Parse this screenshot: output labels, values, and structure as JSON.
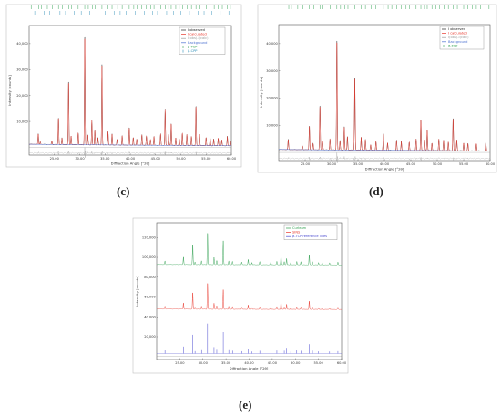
{
  "chart_data": [
    {
      "id": "c",
      "type": "line",
      "caption": "(c)",
      "xlabel": "Diffraction Angle [°2θ]",
      "ylabel": "Intensity [counts]",
      "xlim": [
        20,
        60
      ],
      "ylim": [
        -3000,
        47000
      ],
      "xticks": [
        "25.00",
        "30.00",
        "35.00",
        "40.00",
        "45.00",
        "50.00",
        "55.00",
        "60.00"
      ],
      "yticks": [
        "10,000",
        "20,000",
        "30,000",
        "40,000"
      ],
      "ytick_values": [
        10000,
        20000,
        30000,
        40000
      ],
      "legend_position": "top-right",
      "legend": [
        {
          "label": "I observed",
          "color": "#222222"
        },
        {
          "label": "I calculated",
          "color": "#e8362a"
        },
        {
          "label": "I(obs)-I(calc)",
          "color": "#9a9a9a"
        },
        {
          "label": "Background",
          "color": "#4a6fd0"
        },
        {
          "label": "β-TCP",
          "color": "#2e9e4e",
          "marker": true
        },
        {
          "label": "β-CPP",
          "color": "#2f8fb8",
          "marker": true
        }
      ],
      "background": 1200,
      "peaks": [
        [
          21.8,
          4200
        ],
        [
          22.2,
          1100
        ],
        [
          24.5,
          1500
        ],
        [
          25.8,
          10800
        ],
        [
          26.5,
          2600
        ],
        [
          27.8,
          25500
        ],
        [
          28.3,
          3400
        ],
        [
          29.7,
          4700
        ],
        [
          31.0,
          44000
        ],
        [
          31.6,
          3800
        ],
        [
          32.4,
          9500
        ],
        [
          33.0,
          5800
        ],
        [
          33.6,
          2800
        ],
        [
          34.4,
          31000
        ],
        [
          35.6,
          5200
        ],
        [
          36.4,
          4200
        ],
        [
          37.4,
          2300
        ],
        [
          38.4,
          3600
        ],
        [
          39.8,
          7000
        ],
        [
          40.6,
          3100
        ],
        [
          41.3,
          2400
        ],
        [
          42.3,
          4100
        ],
        [
          43.2,
          3600
        ],
        [
          44.0,
          2300
        ],
        [
          44.7,
          3500
        ],
        [
          46.0,
          4500
        ],
        [
          46.9,
          14000
        ],
        [
          47.6,
          4400
        ],
        [
          48.1,
          8500
        ],
        [
          49.0,
          3100
        ],
        [
          49.7,
          2600
        ],
        [
          50.3,
          4900
        ],
        [
          51.2,
          4300
        ],
        [
          52.1,
          3600
        ],
        [
          53.0,
          16000
        ],
        [
          53.7,
          4500
        ],
        [
          55.0,
          3300
        ],
        [
          55.8,
          3000
        ],
        [
          56.5,
          2600
        ],
        [
          57.4,
          3100
        ],
        [
          58.1,
          2300
        ],
        [
          59.2,
          3600
        ],
        [
          59.8,
          2100
        ]
      ],
      "reflection_rows": [
        {
          "name": "β-TCP",
          "color": "#2e9e4e",
          "positions": [
            20.4,
            21.9,
            22.4,
            23.6,
            24.6,
            25.8,
            26.6,
            27.8,
            28.4,
            29.7,
            31.0,
            31.7,
            32.5,
            33.1,
            34.4,
            35.6,
            36.4,
            37.5,
            38.4,
            39.8,
            40.7,
            41.4,
            42.3,
            43.2,
            44.1,
            44.7,
            46.0,
            46.9,
            47.6,
            48.1,
            49.0,
            49.7,
            50.4,
            51.3,
            52.1,
            53.0,
            53.8,
            55.0,
            55.8,
            56.6,
            57.4,
            58.2,
            59.2,
            59.8
          ]
        },
        {
          "name": "β-CPP",
          "color": "#2f8fb8",
          "positions": [
            21.1,
            23.0,
            24.1,
            26.1,
            27.2,
            28.9,
            30.3,
            32.0,
            33.4,
            35.0,
            36.8,
            38.0,
            39.2,
            41.0,
            42.8,
            44.4,
            45.4,
            47.2,
            48.6,
            50.0,
            51.7,
            53.4,
            54.6,
            56.1,
            57.8,
            59.5
          ]
        }
      ],
      "residual_level": -2200
    },
    {
      "id": "d",
      "type": "line",
      "caption": "(d)",
      "xlabel": "Diffraction Angle [°2θ]",
      "ylabel": "Intensity [counts]",
      "xlim": [
        20,
        60
      ],
      "ylim": [
        -3000,
        47000
      ],
      "xticks": [
        "25.00",
        "30.00",
        "35.00",
        "40.00",
        "45.00",
        "50.00",
        "55.00",
        "60.00"
      ],
      "yticks": [
        "10,000",
        "20,000",
        "30,000",
        "40,000"
      ],
      "ytick_values": [
        10000,
        20000,
        30000,
        40000
      ],
      "legend_position": "top-right",
      "legend": [
        {
          "label": "I observed",
          "color": "#222222"
        },
        {
          "label": "I calculated",
          "color": "#e8362a"
        },
        {
          "label": "I(obs)-I(calc)",
          "color": "#9a9a9a"
        },
        {
          "label": "Background",
          "color": "#4a6fd0"
        },
        {
          "label": "β-TCP",
          "color": "#2e9e4e",
          "marker": true
        }
      ],
      "background": 1100,
      "peaks": [
        [
          21.8,
          3900
        ],
        [
          24.5,
          1400
        ],
        [
          25.8,
          9200
        ],
        [
          26.5,
          2400
        ],
        [
          27.8,
          17000
        ],
        [
          28.3,
          3100
        ],
        [
          29.7,
          4200
        ],
        [
          31.0,
          42500
        ],
        [
          31.6,
          3500
        ],
        [
          32.4,
          8500
        ],
        [
          33.0,
          5200
        ],
        [
          34.4,
          26500
        ],
        [
          35.6,
          4800
        ],
        [
          36.4,
          3900
        ],
        [
          37.4,
          2100
        ],
        [
          38.4,
          3300
        ],
        [
          39.8,
          6400
        ],
        [
          40.6,
          2900
        ],
        [
          42.3,
          3800
        ],
        [
          43.2,
          3300
        ],
        [
          44.7,
          3200
        ],
        [
          46.0,
          4300
        ],
        [
          46.9,
          11500
        ],
        [
          47.6,
          4000
        ],
        [
          48.1,
          7600
        ],
        [
          49.0,
          2900
        ],
        [
          50.3,
          4400
        ],
        [
          51.2,
          3900
        ],
        [
          52.1,
          3300
        ],
        [
          53.0,
          12500
        ],
        [
          53.7,
          4100
        ],
        [
          55.0,
          3000
        ],
        [
          55.8,
          2800
        ],
        [
          57.4,
          2800
        ],
        [
          59.2,
          3300
        ]
      ],
      "reflection_rows": [
        {
          "name": "β-TCP",
          "color": "#2e9e4e",
          "positions": [
            20.4,
            21.9,
            22.4,
            23.6,
            24.6,
            25.8,
            26.6,
            27.8,
            28.4,
            29.7,
            31.0,
            31.7,
            32.5,
            33.1,
            34.4,
            35.6,
            36.4,
            37.5,
            38.4,
            39.8,
            40.7,
            41.4,
            42.3,
            43.2,
            44.1,
            44.7,
            46.0,
            46.9,
            47.6,
            48.1,
            49.0,
            49.7,
            50.4,
            51.3,
            52.1,
            53.0,
            53.8,
            55.0,
            55.8,
            56.6,
            57.4,
            58.2,
            59.2,
            59.8
          ]
        }
      ],
      "residual_level": -2200
    },
    {
      "id": "e",
      "type": "line",
      "caption": "(e)",
      "xlabel": "Diffraction Angle [°2θ]",
      "ylabel": "Intensity [counts]",
      "xlim": [
        20,
        60
      ],
      "ylim": [
        -3000,
        135000
      ],
      "xticks": [
        "25.00",
        "30.00",
        "35.00",
        "40.00",
        "45.00",
        "50.00",
        "55.00",
        "60.00"
      ],
      "yticks": [
        "20,000",
        "40,000",
        "60,000",
        "80,000",
        "100,000",
        "120,000"
      ],
      "ytick_values": [
        20000,
        40000,
        60000,
        80000,
        100000,
        120000
      ],
      "legend_position": "top-right",
      "legend": [
        {
          "label": "Curleam",
          "color": "#2e9e4e"
        },
        {
          "label": "SINS",
          "color": "#e8362a"
        },
        {
          "label": "β-TCP reference lines",
          "color": "#4a4ad0"
        }
      ],
      "series": [
        {
          "name": "Curleam",
          "color": "#2e9e4e",
          "offset": 92000
        },
        {
          "name": "SINS",
          "color": "#e8362a",
          "offset": 47000
        },
        {
          "name": "β-TCP reference lines",
          "color": "#4a4ad0",
          "offset": 3000
        }
      ],
      "peaks": [
        [
          21.8,
          3500
        ],
        [
          25.8,
          7800
        ],
        [
          27.8,
          21000
        ],
        [
          28.3,
          2700
        ],
        [
          29.7,
          3800
        ],
        [
          31.0,
          33500
        ],
        [
          32.4,
          7200
        ],
        [
          33.0,
          4200
        ],
        [
          34.4,
          24000
        ],
        [
          35.6,
          3800
        ],
        [
          36.4,
          3200
        ],
        [
          38.4,
          2600
        ],
        [
          39.8,
          5300
        ],
        [
          40.6,
          2300
        ],
        [
          42.3,
          3100
        ],
        [
          44.7,
          2800
        ],
        [
          46.0,
          3400
        ],
        [
          46.9,
          9800
        ],
        [
          47.6,
          3200
        ],
        [
          48.1,
          6400
        ],
        [
          49.0,
          2400
        ],
        [
          50.3,
          3500
        ],
        [
          51.2,
          3100
        ],
        [
          53.0,
          10500
        ],
        [
          53.7,
          3300
        ],
        [
          55.0,
          2400
        ],
        [
          55.8,
          2200
        ],
        [
          57.4,
          2300
        ],
        [
          59.2,
          2700
        ]
      ]
    }
  ]
}
